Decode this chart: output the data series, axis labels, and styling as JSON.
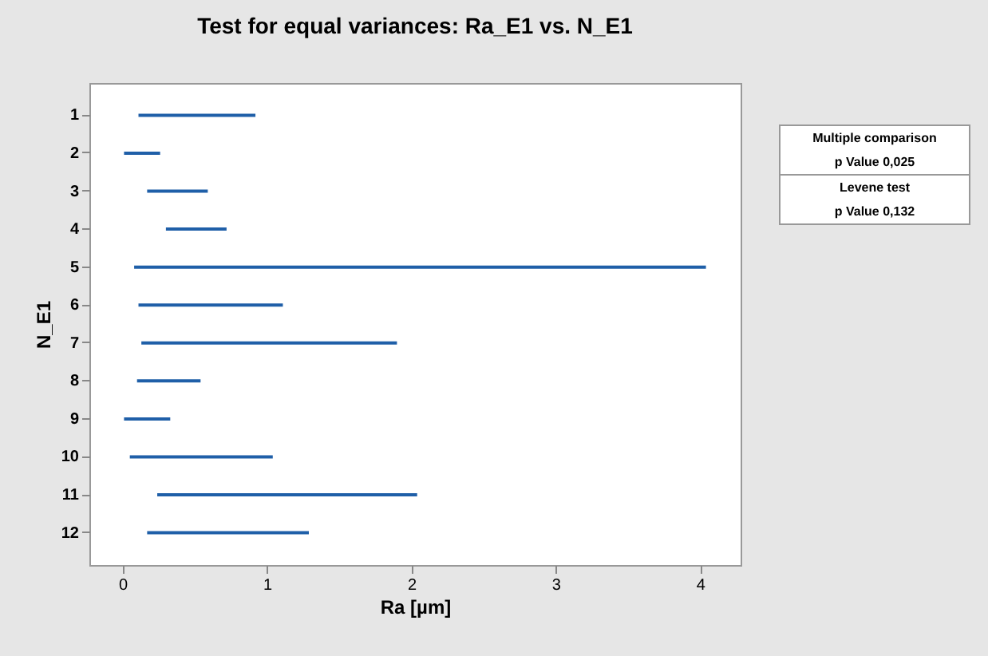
{
  "chart_data": {
    "type": "bar",
    "orientation": "horizontal",
    "title": "Test for equal variances: Ra_E1 vs. N_E1",
    "xlabel": "Ra [µm]",
    "ylabel": "N_E1",
    "categories": [
      "1",
      "2",
      "3",
      "4",
      "5",
      "6",
      "7",
      "8",
      "9",
      "10",
      "11",
      "12"
    ],
    "base": [
      0.11,
      0.01,
      0.17,
      0.3,
      0.08,
      0.11,
      0.13,
      0.1,
      0.01,
      0.05,
      0.24,
      0.17
    ],
    "values": [
      0.81,
      0.25,
      0.42,
      0.42,
      3.96,
      1.0,
      1.77,
      0.44,
      0.32,
      0.99,
      1.8,
      1.12
    ],
    "color": "#1f5fa8",
    "xlim": [
      -0.23,
      4.28
    ],
    "xticks": [
      0,
      1,
      2,
      3,
      4
    ],
    "grid": false,
    "annotations": [
      "Multiple comparison",
      "p Value   0,025",
      "Levene test",
      "p Value   0,132"
    ]
  }
}
